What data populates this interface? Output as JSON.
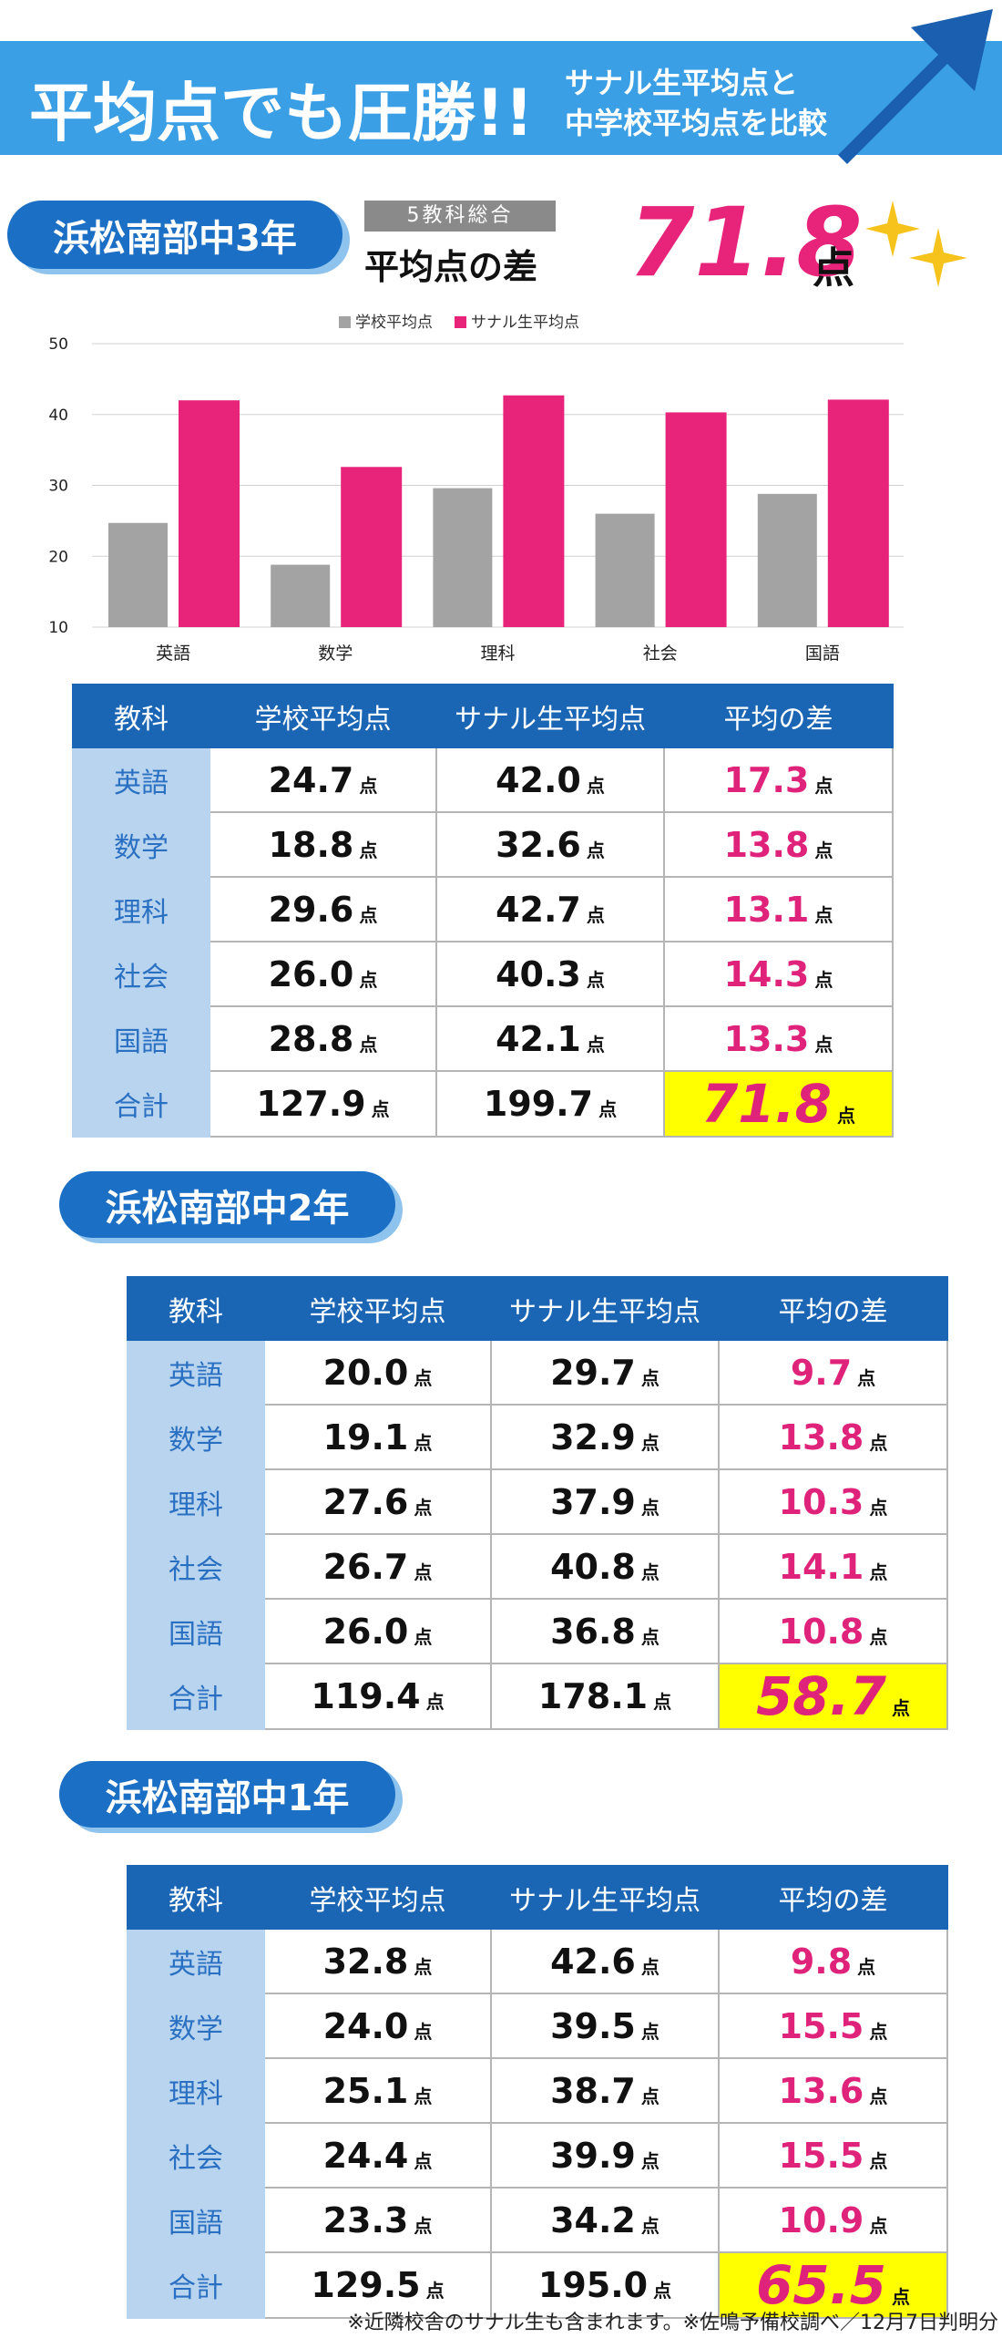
{
  "header": {
    "title": "平均点でも圧勝!!",
    "subtitle": [
      "サナル生平均点と",
      "中学校平均点を比較"
    ]
  },
  "unit": "点",
  "summary": {
    "label": "5教科総合",
    "caption": "平均点の差",
    "value": "71.8"
  },
  "chart_data": {
    "type": "bar",
    "categories": [
      "英語",
      "数学",
      "理科",
      "社会",
      "国語"
    ],
    "series": [
      {
        "name": "学校平均点",
        "color": "#a3a3a3",
        "values": [
          24.7,
          18.8,
          29.6,
          26.0,
          28.8
        ]
      },
      {
        "name": "サナル生平均点",
        "color": "#e8237a",
        "values": [
          42.0,
          32.6,
          42.7,
          40.3,
          42.1
        ]
      }
    ],
    "ylim": [
      10,
      50
    ],
    "yticks": [
      10,
      20,
      30,
      40,
      50
    ],
    "grid": true,
    "legend": "top"
  },
  "sections": [
    {
      "title": "浜松南部中3年",
      "table": {
        "headers": [
          "教科",
          "学校平均点",
          "サナル生平均点",
          "平均の差"
        ],
        "rows": [
          [
            "英語",
            "24.7",
            "42.0",
            "17.3"
          ],
          [
            "数学",
            "18.8",
            "32.6",
            "13.8"
          ],
          [
            "理科",
            "29.6",
            "42.7",
            "13.1"
          ],
          [
            "社会",
            "26.0",
            "40.3",
            "14.3"
          ],
          [
            "国語",
            "28.8",
            "42.1",
            "13.3"
          ],
          [
            "合計",
            "127.9",
            "199.7",
            "71.8"
          ]
        ]
      }
    },
    {
      "title": "浜松南部中2年",
      "table": {
        "headers": [
          "教科",
          "学校平均点",
          "サナル生平均点",
          "平均の差"
        ],
        "rows": [
          [
            "英語",
            "20.0",
            "29.7",
            "9.7"
          ],
          [
            "数学",
            "19.1",
            "32.9",
            "13.8"
          ],
          [
            "理科",
            "27.6",
            "37.9",
            "10.3"
          ],
          [
            "社会",
            "26.7",
            "40.8",
            "14.1"
          ],
          [
            "国語",
            "26.0",
            "36.8",
            "10.8"
          ],
          [
            "合計",
            "119.4",
            "178.1",
            "58.7"
          ]
        ]
      }
    },
    {
      "title": "浜松南部中1年",
      "table": {
        "headers": [
          "教科",
          "学校平均点",
          "サナル生平均点",
          "平均の差"
        ],
        "rows": [
          [
            "英語",
            "32.8",
            "42.6",
            "9.8"
          ],
          [
            "数学",
            "24.0",
            "39.5",
            "15.5"
          ],
          [
            "理科",
            "25.1",
            "38.7",
            "13.6"
          ],
          [
            "社会",
            "24.4",
            "39.9",
            "15.5"
          ],
          [
            "国語",
            "23.3",
            "34.2",
            "10.9"
          ],
          [
            "合計",
            "129.5",
            "195.0",
            "65.5"
          ]
        ]
      }
    }
  ],
  "footnote": "※近隣校舎のサナル生も含まれます。※佐鳴予備校調べ／12月7日判明分"
}
